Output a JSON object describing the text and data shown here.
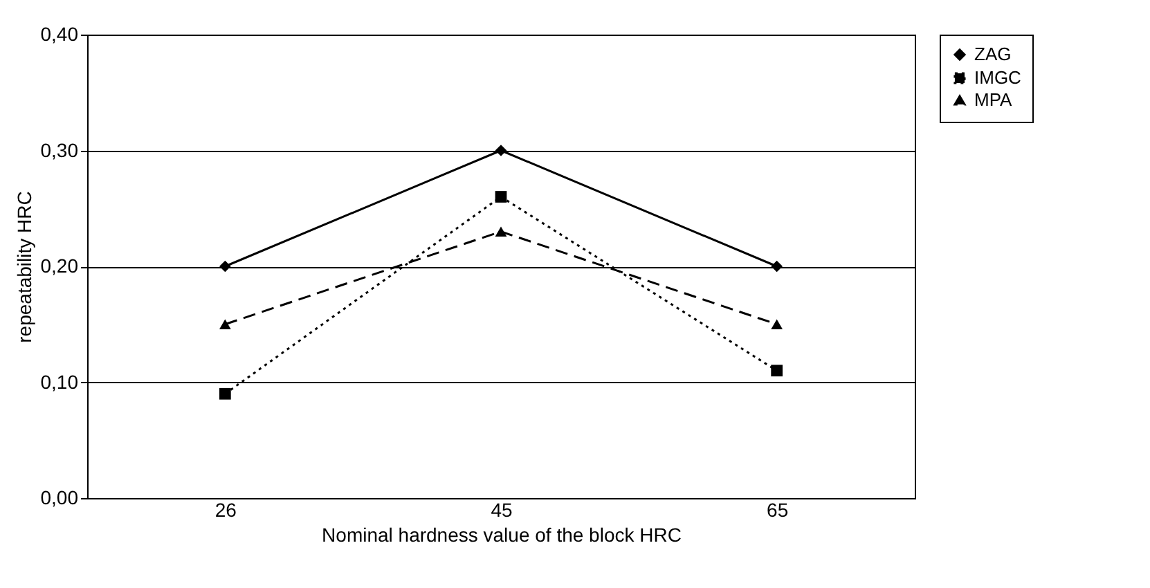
{
  "chart_data": {
    "type": "line",
    "xlabel": "Nominal hardness value of the block HRC",
    "ylabel": "repeatability HRC",
    "categories": [
      "26",
      "45",
      "65"
    ],
    "series": [
      {
        "name": "ZAG",
        "color": "#000000",
        "values": [
          0.2,
          0.3,
          0.2
        ],
        "marker": "diamond",
        "line_style": "solid"
      },
      {
        "name": "IMGC",
        "color": "#000000",
        "values": [
          0.09,
          0.26,
          0.11
        ],
        "marker": "square",
        "line_style": "dotted"
      },
      {
        "name": "MPA",
        "color": "#000000",
        "values": [
          0.15,
          0.23,
          0.15
        ],
        "marker": "triangle",
        "line_style": "dashed"
      }
    ],
    "ylim": [
      0,
      0.4
    ],
    "yticks": [
      {
        "value": 0,
        "label": "0,00"
      },
      {
        "value": 0.1,
        "label": "0,10"
      },
      {
        "value": 0.2,
        "label": "0,20"
      },
      {
        "value": 0.3,
        "label": "0,30"
      },
      {
        "value": 0.4,
        "label": "0,40"
      }
    ],
    "grid": "y",
    "legend": "right"
  }
}
